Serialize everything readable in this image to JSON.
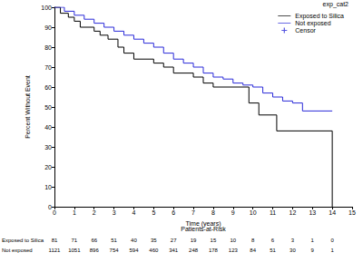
{
  "chart_data": {
    "type": "line",
    "line_style": "step",
    "legend_title": "exp_cat2",
    "legend": "upper right",
    "x_label": "Time (years)",
    "y_label": "Percent Without Event",
    "xlim": [
      0,
      15
    ],
    "xticks": [
      0,
      1,
      2,
      3,
      4,
      5,
      6,
      7,
      8,
      9,
      10,
      11,
      12,
      13,
      14,
      15
    ],
    "ylim": [
      0,
      100
    ],
    "yticks": [
      0,
      10,
      20,
      30,
      40,
      50,
      60,
      70,
      80,
      90,
      100
    ],
    "grid": false,
    "series": [
      {
        "name": "Exposed to Silica",
        "color": "#000000",
        "type": "line",
        "x": [
          0,
          0.3,
          0.7,
          1.0,
          1.3,
          2.0,
          2.3,
          2.7,
          3.2,
          3.5,
          4.0,
          5.0,
          5.5,
          6.0,
          7.0,
          7.5,
          8.0,
          9.8,
          10.3,
          11.2,
          14.0,
          14.0
        ],
        "values": [
          100,
          97,
          95,
          93,
          90,
          88,
          86,
          84,
          80,
          77,
          74,
          72,
          70,
          67,
          65,
          62,
          60,
          52,
          46,
          38,
          38,
          0
        ]
      },
      {
        "name": "Not exposed",
        "color": "#2a2ad8",
        "type": "line",
        "x": [
          0,
          0.5,
          1.0,
          1.5,
          2.0,
          2.5,
          3.0,
          3.5,
          4.0,
          4.5,
          5.0,
          5.5,
          6.0,
          6.5,
          7.0,
          7.5,
          8.0,
          8.5,
          9.0,
          9.5,
          10.0,
          10.5,
          11.0,
          11.5,
          12.0,
          12.5,
          14.0
        ],
        "values": [
          100,
          98,
          96,
          94,
          92,
          90,
          88,
          86,
          84,
          82,
          80,
          77,
          74,
          72,
          70,
          67,
          65,
          64,
          62,
          61,
          60,
          57,
          55,
          53,
          52,
          48,
          48
        ]
      },
      {
        "name": "Censor",
        "color": "#2a2ad8",
        "type": "scatter",
        "marker": "plus",
        "x": [],
        "values": []
      }
    ],
    "risk_table": {
      "title": "Patients-at-Risk",
      "x": [
        0,
        1,
        2,
        3,
        4,
        5,
        6,
        7,
        8,
        9,
        10,
        11,
        12,
        13,
        14
      ],
      "rows": [
        {
          "name": "Exposed to Silica",
          "values": [
            81,
            71,
            66,
            51,
            40,
            35,
            27,
            19,
            15,
            10,
            8,
            6,
            3,
            1,
            0
          ]
        },
        {
          "name": "Not exposed",
          "values": [
            1121,
            1051,
            896,
            754,
            594,
            460,
            341,
            248,
            178,
            123,
            84,
            51,
            30,
            9,
            1
          ]
        }
      ]
    }
  }
}
